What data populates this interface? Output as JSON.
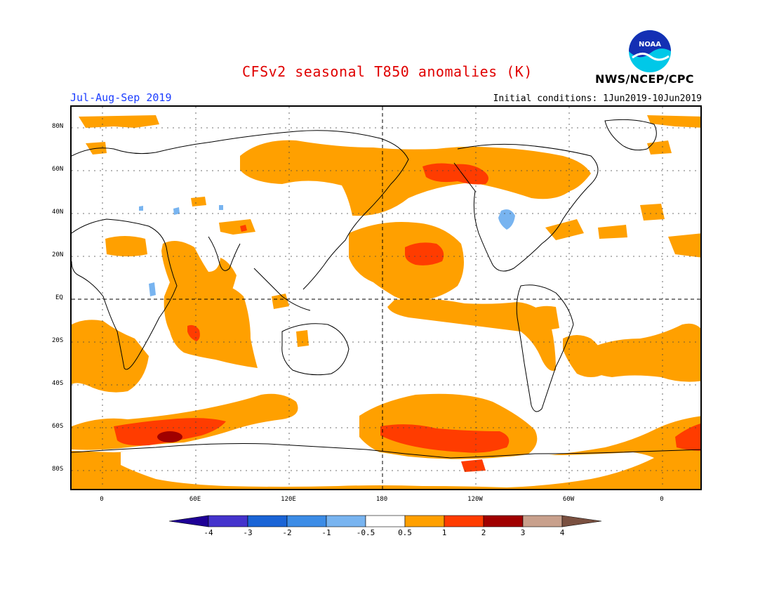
{
  "title": "CFSv2 seasonal T850 anomalies (K)",
  "season": "Jul-Aug-Sep 2019",
  "initial_conditions": "Initial conditions: 1Jun2019-10Jun2019",
  "agency": "NWS/NCEP/CPC",
  "logo_text": "NOAA",
  "lat_labels": [
    "80N",
    "60N",
    "40N",
    "20N",
    "EQ",
    "20S",
    "40S",
    "60S",
    "80S"
  ],
  "lon_labels": [
    "0",
    "60E",
    "120E",
    "180",
    "120W",
    "60W",
    "0"
  ],
  "colorbar": {
    "labels": [
      "-4",
      "-3",
      "-2",
      "-1",
      "-0.5",
      "0.5",
      "1",
      "2",
      "3",
      "4"
    ],
    "colors": [
      "#1e0096",
      "#4433cc",
      "#1a64d6",
      "#3c8ce6",
      "#78b4f0",
      "#ffffff",
      "#ffa000",
      "#ff3c00",
      "#a00000",
      "#c8a08c",
      "#7a5040"
    ]
  },
  "anomaly_colors": {
    "neg_05_1": "#78b4f0",
    "pos_05_1": "#ffa000",
    "pos_1_2": "#ff3c00",
    "pos_2_3": "#a00000"
  }
}
